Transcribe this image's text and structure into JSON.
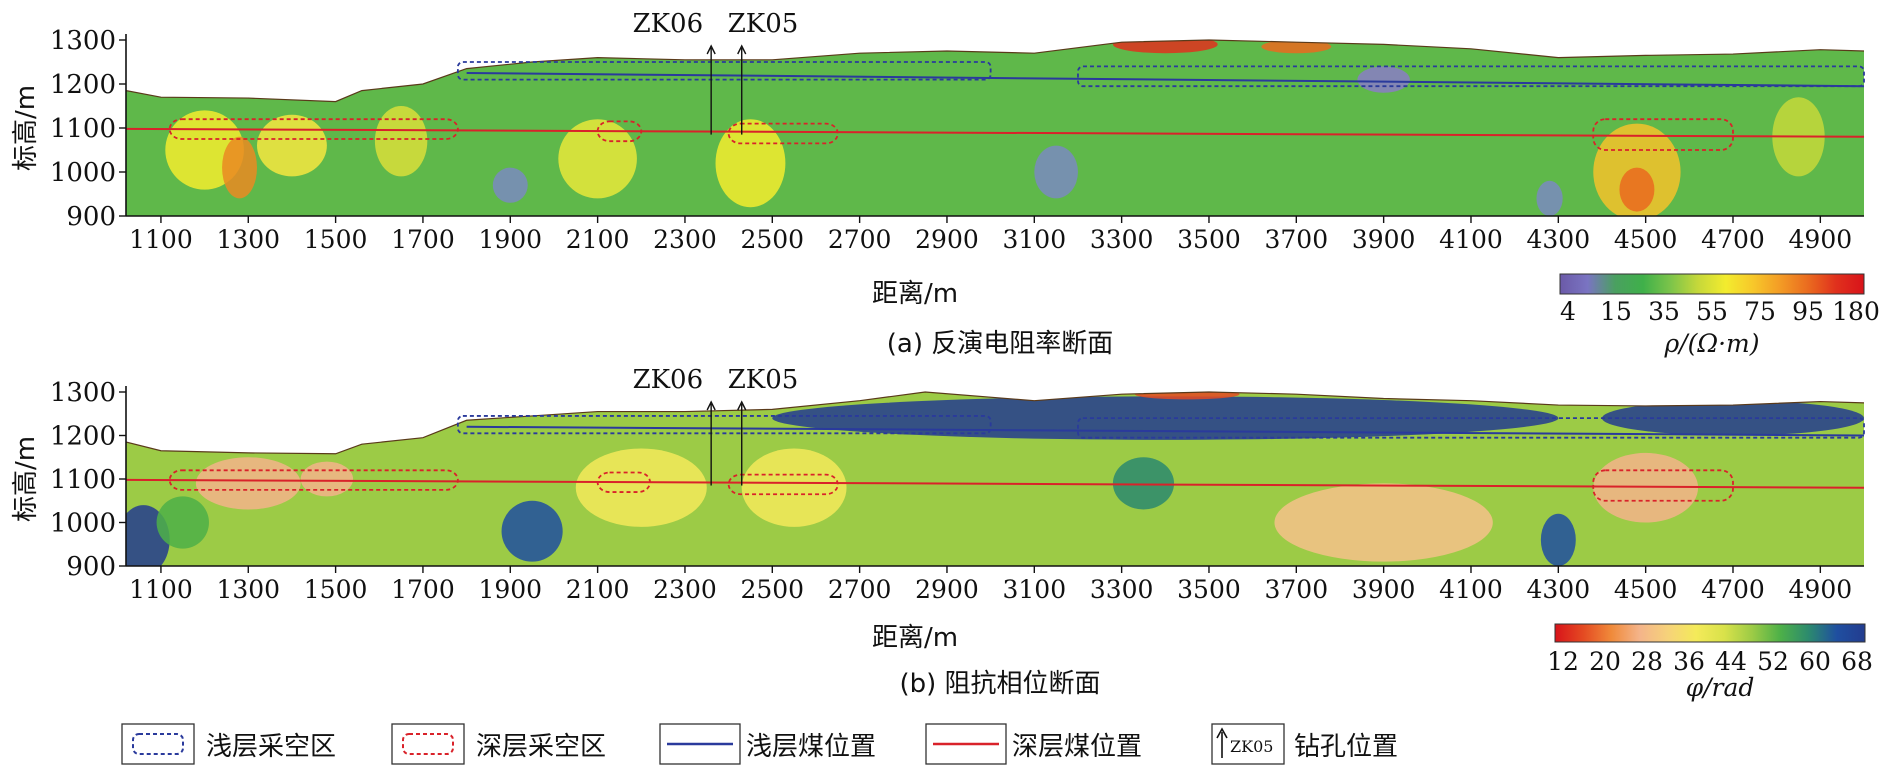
{
  "chart_data": [
    {
      "type": "heatmap",
      "panel": "a",
      "title": "(a) 反演电阻率断面",
      "xlabel": "距离/m",
      "ylabel": "标高/m",
      "xlim": [
        1020,
        5000
      ],
      "ylim": [
        900,
        1300
      ],
      "xticks": [
        1100,
        1300,
        1500,
        1700,
        1900,
        2100,
        2300,
        2500,
        2700,
        2900,
        3100,
        3300,
        3500,
        3700,
        3900,
        4100,
        4300,
        4500,
        4700,
        4900
      ],
      "yticks": [
        900,
        1000,
        1100,
        1200,
        1300
      ],
      "colorbar": {
        "label": "ρ/(Ω·m)",
        "ticks": [
          "4",
          "15",
          "35",
          "55",
          "75",
          "95",
          "180"
        ],
        "colors": [
          "#6b5aa8",
          "#7a74c2",
          "#4aa060",
          "#3fb04a",
          "#7cc44a",
          "#c6d83a",
          "#f3ec2e",
          "#f7c72a",
          "#f39a25",
          "#ea6a1f",
          "#e0301d",
          "#d8131a"
        ]
      },
      "boreholes": [
        {
          "name": "ZK06",
          "x": 2360
        },
        {
          "name": "ZK05",
          "x": 2430
        }
      ],
      "shallow_coal_elevation": [
        [
          1800,
          1225
        ],
        [
          5000,
          1195
        ]
      ],
      "deep_coal_elevation": [
        [
          1020,
          1098
        ],
        [
          5000,
          1080
        ]
      ],
      "surface_profile": [
        [
          1020,
          1185
        ],
        [
          1100,
          1170
        ],
        [
          1300,
          1168
        ],
        [
          1500,
          1160
        ],
        [
          1560,
          1185
        ],
        [
          1700,
          1200
        ],
        [
          1800,
          1235
        ],
        [
          1950,
          1250
        ],
        [
          2100,
          1260
        ],
        [
          2300,
          1255
        ],
        [
          2500,
          1255
        ],
        [
          2700,
          1270
        ],
        [
          2900,
          1275
        ],
        [
          3100,
          1270
        ],
        [
          3300,
          1295
        ],
        [
          3500,
          1300
        ],
        [
          3700,
          1295
        ],
        [
          3900,
          1290
        ],
        [
          4100,
          1280
        ],
        [
          4300,
          1260
        ],
        [
          4500,
          1265
        ],
        [
          4700,
          1268
        ],
        [
          4900,
          1278
        ],
        [
          5000,
          1275
        ]
      ],
      "shallow_goaf": [
        [
          1780,
          1210,
          3000,
          1250
        ],
        [
          3200,
          1195,
          5000,
          1240
        ]
      ],
      "deep_goaf": [
        [
          1120,
          1075,
          1780,
          1120
        ],
        [
          2100,
          1070,
          2200,
          1115
        ],
        [
          2400,
          1065,
          2650,
          1110
        ],
        [
          4380,
          1050,
          4700,
          1120
        ]
      ]
    },
    {
      "type": "heatmap",
      "panel": "b",
      "title": "(b) 阻抗相位断面",
      "xlabel": "距离/m",
      "ylabel": "标高/m",
      "xlim": [
        1020,
        5000
      ],
      "ylim": [
        900,
        1300
      ],
      "xticks": [
        1100,
        1300,
        1500,
        1700,
        1900,
        2100,
        2300,
        2500,
        2700,
        2900,
        3100,
        3300,
        3500,
        3700,
        3900,
        4100,
        4300,
        4500,
        4700,
        4900
      ],
      "yticks": [
        900,
        1000,
        1100,
        1200,
        1300
      ],
      "colorbar": {
        "label": "φ/rad",
        "ticks": [
          "12",
          "20",
          "28",
          "36",
          "44",
          "52",
          "60",
          "68"
        ],
        "colors": [
          "#d8131a",
          "#e44a22",
          "#f08a3a",
          "#f4b48a",
          "#f6d27a",
          "#f4ea5a",
          "#d9e24a",
          "#9ccb46",
          "#4db048",
          "#2c8a6e",
          "#1f4fa0",
          "#233c8f"
        ]
      },
      "boreholes": [
        {
          "name": "ZK06",
          "x": 2360
        },
        {
          "name": "ZK05",
          "x": 2430
        }
      ],
      "shallow_coal_elevation": [
        [
          1800,
          1220
        ],
        [
          5000,
          1200
        ]
      ],
      "deep_coal_elevation": [
        [
          1020,
          1098
        ],
        [
          5000,
          1080
        ]
      ],
      "surface_profile": [
        [
          1020,
          1185
        ],
        [
          1100,
          1165
        ],
        [
          1300,
          1160
        ],
        [
          1500,
          1158
        ],
        [
          1560,
          1180
        ],
        [
          1700,
          1195
        ],
        [
          1800,
          1235
        ],
        [
          1950,
          1245
        ],
        [
          2100,
          1255
        ],
        [
          2300,
          1255
        ],
        [
          2500,
          1260
        ],
        [
          2700,
          1280
        ],
        [
          2850,
          1300
        ],
        [
          3100,
          1280
        ],
        [
          3300,
          1295
        ],
        [
          3500,
          1300
        ],
        [
          3700,
          1295
        ],
        [
          3900,
          1285
        ],
        [
          4100,
          1280
        ],
        [
          4300,
          1270
        ],
        [
          4500,
          1268
        ],
        [
          4700,
          1270
        ],
        [
          4900,
          1278
        ],
        [
          5000,
          1275
        ]
      ],
      "shallow_goaf": [
        [
          1780,
          1205,
          3000,
          1245
        ],
        [
          3200,
          1195,
          5000,
          1240
        ]
      ],
      "deep_goaf": [
        [
          1120,
          1075,
          1780,
          1120
        ],
        [
          2100,
          1070,
          2220,
          1115
        ],
        [
          2400,
          1065,
          2650,
          1110
        ],
        [
          4380,
          1050,
          4700,
          1120
        ]
      ]
    }
  ],
  "legend": {
    "shallow_goaf": "浅层采空区",
    "deep_goaf": "深层采空区",
    "shallow_coal": "浅层煤位置",
    "deep_coal": "深层煤位置",
    "borehole": "钻孔位置",
    "borehole_sample": "ZK05"
  }
}
